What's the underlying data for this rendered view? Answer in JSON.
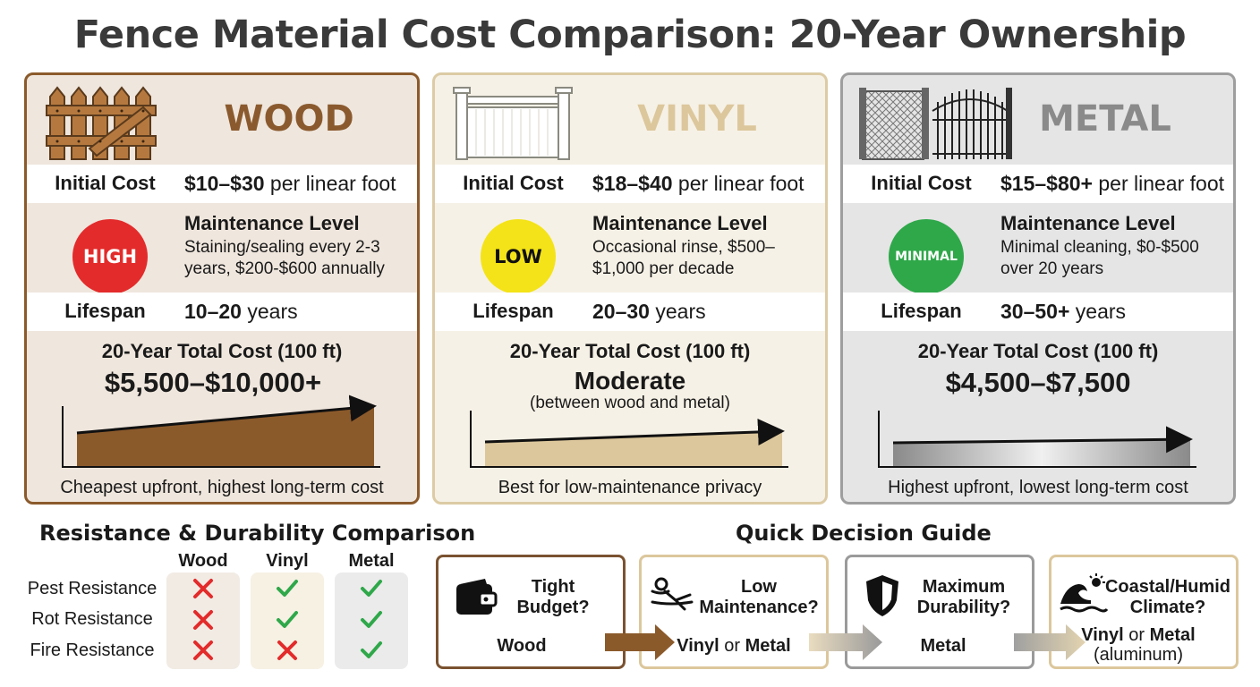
{
  "title": "Fence Material Cost Comparison: 20-Year Ownership",
  "cards": {
    "wood": {
      "name": "WOOD",
      "initial_label": "Initial Cost",
      "initial_value": "$10–$30",
      "initial_unit": " per linear foot",
      "badge": "HIGH",
      "badge_color": "#e32b2b",
      "maint_title": "Maintenance Level",
      "maint_desc": "Staining/sealing every 2-3 years, $200-$600 annually",
      "life_label": "Lifespan",
      "life_value": "10–20",
      "life_unit": " years",
      "total_title": "20-Year Total Cost (100 ft)",
      "total_value": "$5,500–$10,000+",
      "caption": "Cheapest upfront, highest long-term cost",
      "accent": "#8a5a2e"
    },
    "vinyl": {
      "name": "VINYL",
      "initial_label": "Initial Cost",
      "initial_value": "$18–$40",
      "initial_unit": " per linear foot",
      "badge": "LOW",
      "badge_color": "#f4e318",
      "maint_title": "Maintenance Level",
      "maint_desc": "Occasional rinse, $500–$1,000 per decade",
      "life_label": "Lifespan",
      "life_value": "20–30",
      "life_unit": " years",
      "total_title": "20-Year Total Cost (100 ft)",
      "total_value": "Moderate",
      "total_sub": "(between wood and metal)",
      "caption": "Best for low-maintenance privacy",
      "accent": "#dcc79c"
    },
    "metal": {
      "name": "METAL",
      "initial_label": "Initial Cost",
      "initial_value": "$15–$80+",
      "initial_unit": " per linear foot",
      "badge": "MINIMAL",
      "badge_color": "#2fa84a",
      "maint_title": "Maintenance Level",
      "maint_desc": "Minimal cleaning, $0-$500 over 20 years",
      "life_label": "Lifespan",
      "life_value": "30–50+",
      "life_unit": " years",
      "total_title": "20-Year Total Cost (100 ft)",
      "total_value": "$4,500–$7,500",
      "caption": "Highest upfront, lowest long-term cost",
      "accent": "#8a8a8a"
    }
  },
  "resistance": {
    "title": "Resistance & Durability Comparison",
    "columns": [
      "Wood",
      "Vinyl",
      "Metal"
    ],
    "rows": [
      {
        "label": "Pest Resistance",
        "values": [
          false,
          true,
          true
        ]
      },
      {
        "label": "Rot Resistance",
        "values": [
          false,
          true,
          true
        ]
      },
      {
        "label": "Fire Resistance",
        "values": [
          false,
          false,
          true
        ]
      }
    ]
  },
  "decision": {
    "title": "Quick Decision Guide",
    "items": [
      {
        "question": "Tight Budget?",
        "icon": "wallet-icon",
        "answer_a": "Wood"
      },
      {
        "question": "Low Maintenance?",
        "icon": "relaxing-person-icon",
        "answer_a": "Vinyl",
        "answer_or": " or ",
        "answer_b": "Metal"
      },
      {
        "question": "Maximum Durability?",
        "icon": "shield-icon",
        "answer_a": "Metal"
      },
      {
        "question": "Coastal/Humid Climate?",
        "icon": "wave-sun-icon",
        "answer_a": "Vinyl",
        "answer_or": " or ",
        "answer_b": "Metal",
        "answer_note": "(aluminum)"
      }
    ]
  }
}
